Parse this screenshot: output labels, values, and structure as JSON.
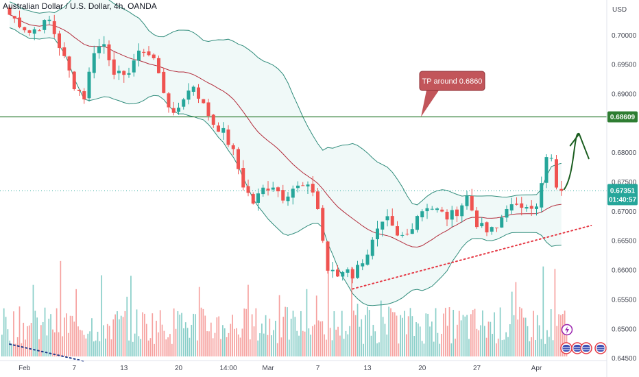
{
  "header": {
    "title": "Australian Dollar / U.S. Dollar, 4h, OANDA"
  },
  "chart_data": {
    "type": "candlestick",
    "symbol": "AUDUSD",
    "currency_label": "USD",
    "y_ticks": [
      "0.70000",
      "0.69500",
      "0.69000",
      "0.68000",
      "0.67500",
      "0.67000",
      "0.66500",
      "0.66000",
      "0.65500",
      "0.65000",
      "0.64500"
    ],
    "y_tick_values": [
      0.7,
      0.695,
      0.69,
      0.68,
      0.675,
      0.67,
      0.665,
      0.66,
      0.655,
      0.65,
      0.645
    ],
    "ylim": [
      0.6418,
      0.706
    ],
    "x_ticks": [
      "Feb",
      "7",
      "13",
      "20",
      "14:00",
      "Mar",
      "7",
      "13",
      "20",
      "27",
      "Apr"
    ],
    "x_tick_index": [
      3,
      13,
      23,
      34,
      44,
      52,
      62,
      72,
      83,
      94,
      106
    ],
    "n_bars": 112,
    "horizontal_level": {
      "value": 0.6861,
      "label": "0.68609",
      "color": "#2e7d32"
    },
    "current_price": {
      "value": 0.67351,
      "label": "0.67351",
      "countdown": "01:40:57",
      "color": "#26a69a"
    },
    "callout": {
      "text": "TP around 0.6860",
      "color": "#c2555a"
    },
    "trendline": {
      "start_index": 69,
      "start_value": 0.6568,
      "end_index": 117,
      "end_value": 0.6676,
      "color": "#e53945",
      "style": "dotted"
    },
    "old_trendline": {
      "start_index": 0,
      "start_value": 0.6474,
      "end_index": 15,
      "end_value": 0.6445,
      "color": "#1e3a8a",
      "style": "dotted"
    },
    "projection_arrow": {
      "color": "#1b5e20"
    },
    "series_path": [
      [
        0,
        0.7035
      ],
      [
        4,
        0.7005
      ],
      [
        8,
        0.7025
      ],
      [
        11,
        0.696
      ],
      [
        13,
        0.6915
      ],
      [
        15,
        0.6895
      ],
      [
        17,
        0.6975
      ],
      [
        19,
        0.6985
      ],
      [
        21,
        0.694
      ],
      [
        23,
        0.6925
      ],
      [
        25,
        0.6958
      ],
      [
        27,
        0.6975
      ],
      [
        29,
        0.696
      ],
      [
        31,
        0.6905
      ],
      [
        33,
        0.686
      ],
      [
        35,
        0.6895
      ],
      [
        37,
        0.6915
      ],
      [
        39,
        0.688
      ],
      [
        41,
        0.685
      ],
      [
        43,
        0.6835
      ],
      [
        45,
        0.68
      ],
      [
        47,
        0.6745
      ],
      [
        49,
        0.6715
      ],
      [
        51,
        0.6738
      ],
      [
        53,
        0.6745
      ],
      [
        55,
        0.6725
      ],
      [
        57,
        0.674
      ],
      [
        59,
        0.6742
      ],
      [
        61,
        0.6735
      ],
      [
        62,
        0.6705
      ],
      [
        63,
        0.665
      ],
      [
        64,
        0.66
      ],
      [
        66,
        0.659
      ],
      [
        68,
        0.6605
      ],
      [
        69,
        0.659
      ],
      [
        70,
        0.6605
      ],
      [
        72,
        0.663
      ],
      [
        74,
        0.6665
      ],
      [
        76,
        0.6685
      ],
      [
        78,
        0.6655
      ],
      [
        80,
        0.666
      ],
      [
        82,
        0.6695
      ],
      [
        84,
        0.671
      ],
      [
        86,
        0.6702
      ],
      [
        88,
        0.669
      ],
      [
        90,
        0.67
      ],
      [
        92,
        0.6725
      ],
      [
        94,
        0.668
      ],
      [
        96,
        0.6665
      ],
      [
        98,
        0.667
      ],
      [
        100,
        0.671
      ],
      [
        102,
        0.6705
      ],
      [
        104,
        0.6715
      ],
      [
        106,
        0.6705
      ],
      [
        107,
        0.6745
      ],
      [
        108,
        0.679
      ],
      [
        109,
        0.6785
      ],
      [
        110,
        0.6745
      ],
      [
        111,
        0.6735
      ]
    ]
  }
}
